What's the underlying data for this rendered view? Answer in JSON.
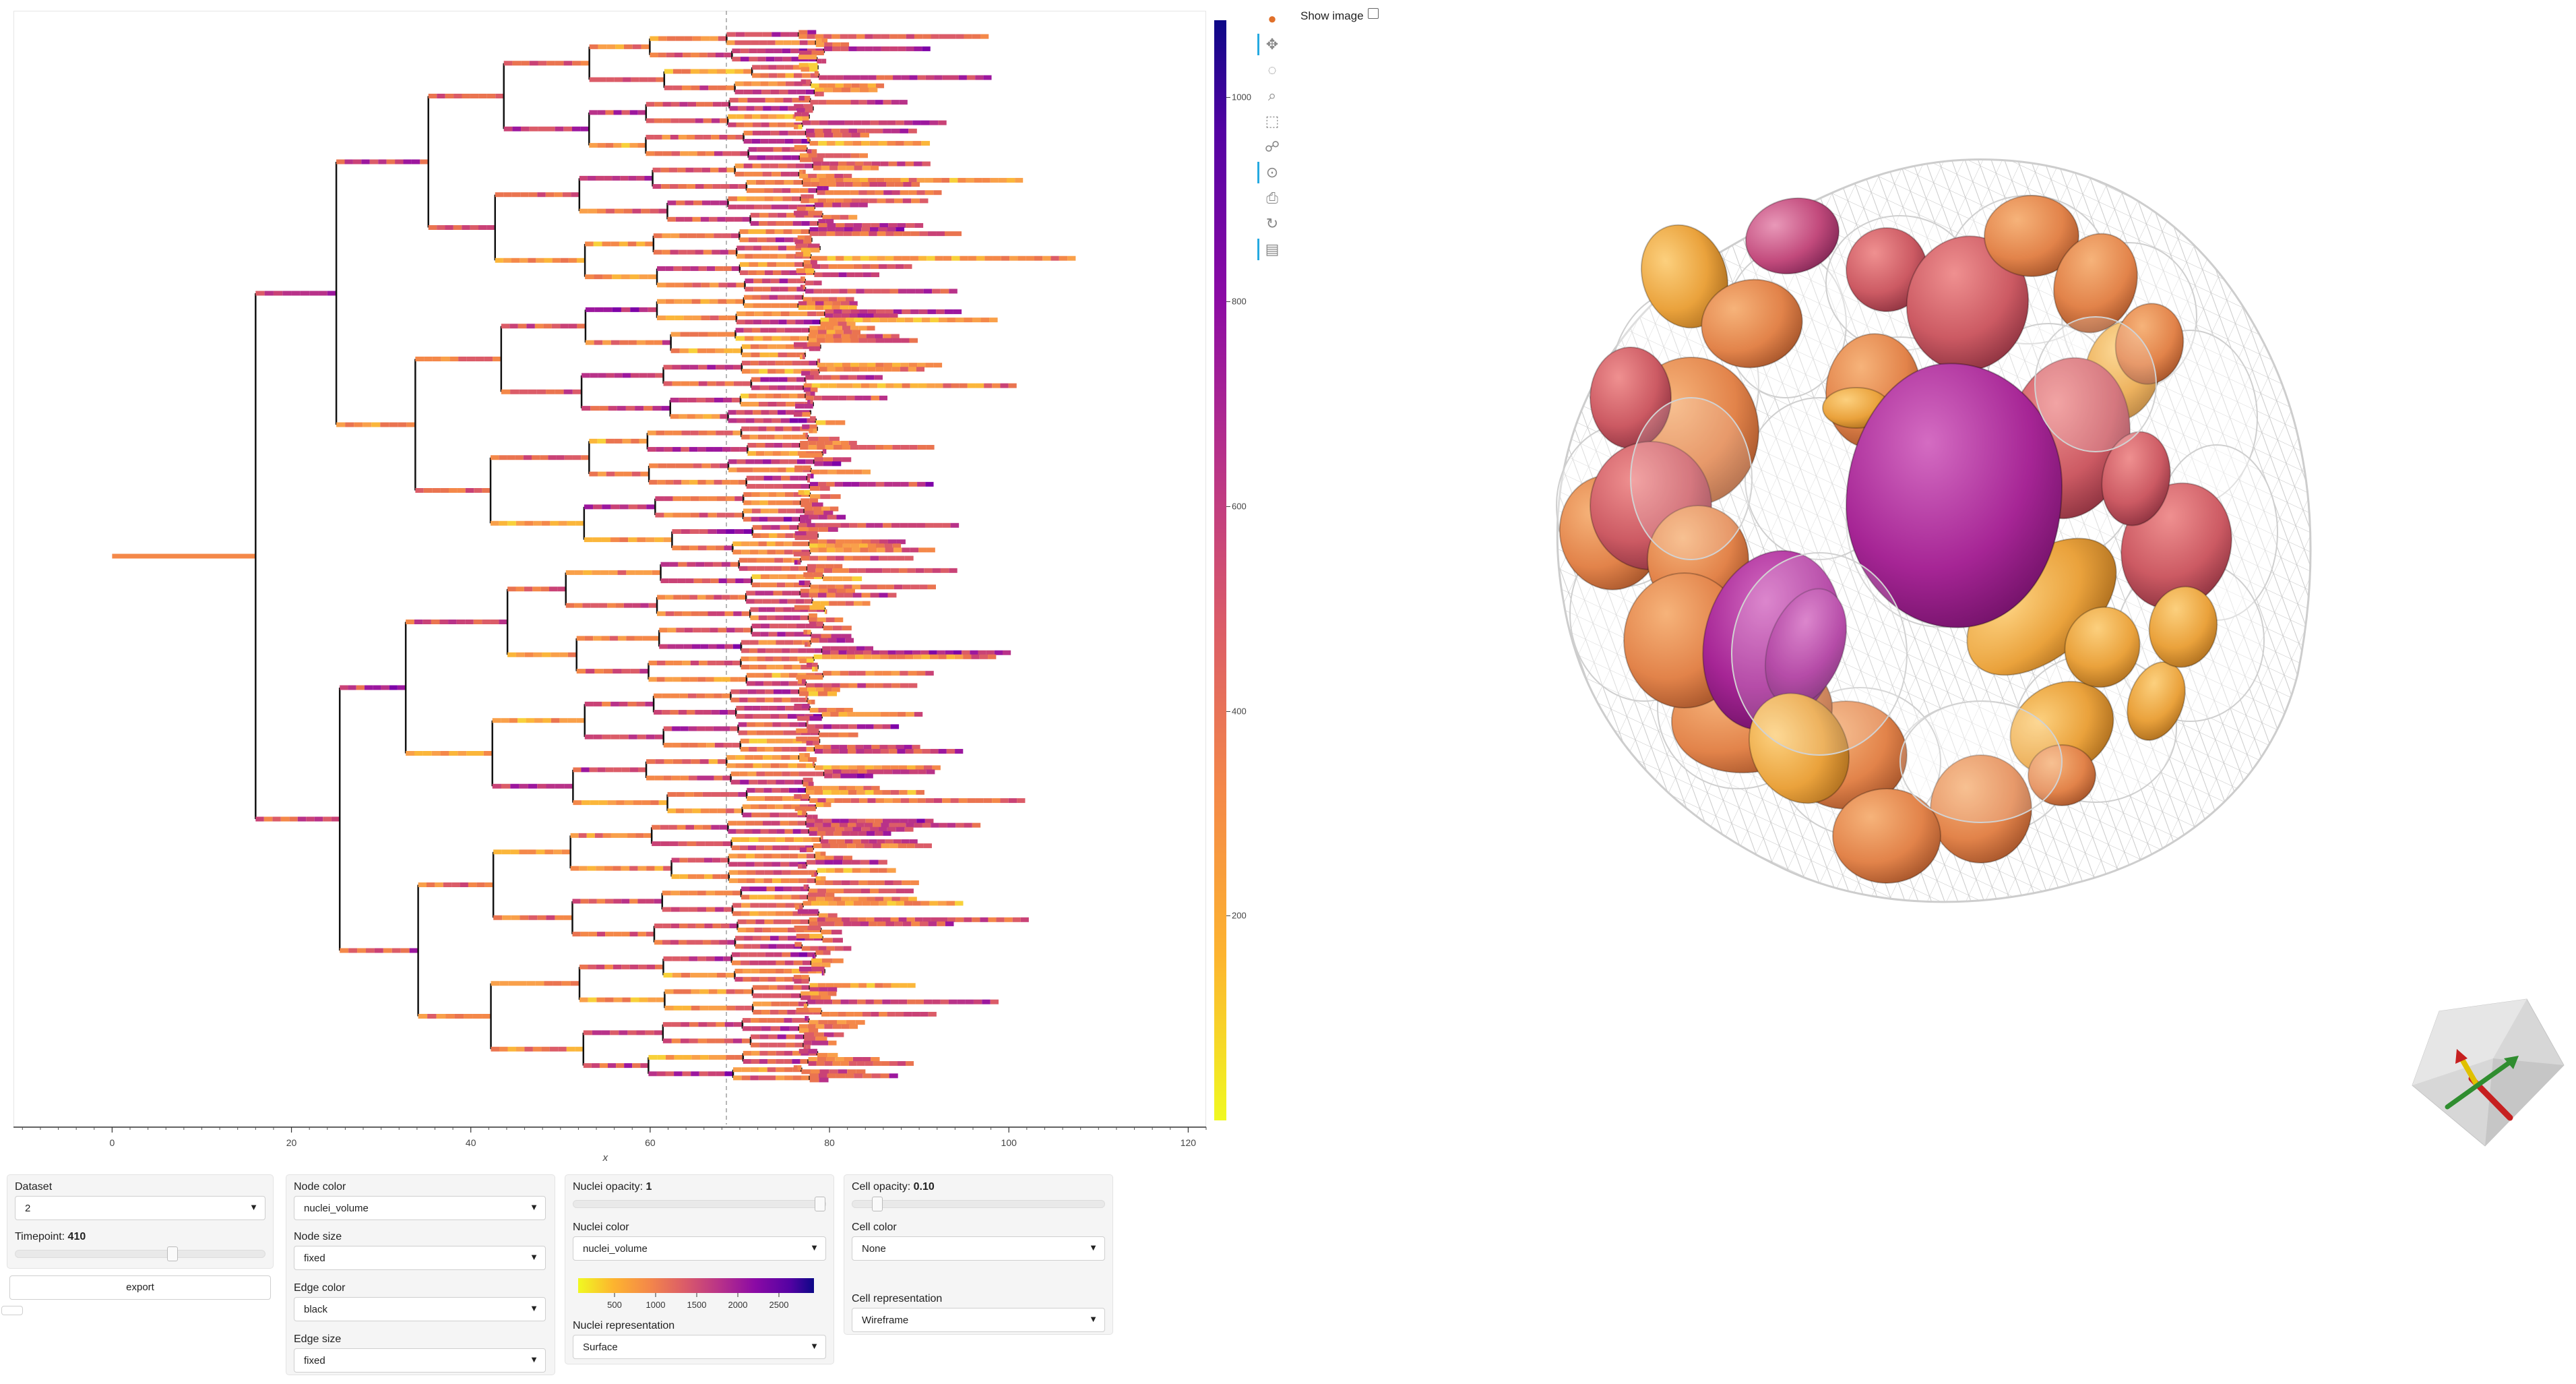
{
  "tree_plot": {
    "xlabel": "x",
    "x_ticks": [
      "0",
      "20",
      "40",
      "60",
      "80",
      "100",
      "120"
    ],
    "colorbar_ticks": [
      "1000",
      "800",
      "600",
      "400",
      "200"
    ],
    "colorbar_ticks_values": [
      1000,
      800,
      600,
      400,
      200
    ],
    "colorbar_range": [
      0,
      1075
    ],
    "marker_x": 68.5,
    "colormap": "plasma-reversed"
  },
  "chart_data": {
    "type": "tree",
    "xlabel": "x",
    "xlim": [
      -11,
      122
    ],
    "xticks": [
      0,
      20,
      40,
      60,
      80,
      100,
      120
    ],
    "branch_points_x": [
      0,
      16,
      26.5,
      34,
      43.5,
      52,
      61,
      70,
      78
    ],
    "leaf_end_x_range": [
      76,
      111
    ],
    "highlight_timepoint_x": 68.5,
    "colorbar": {
      "ticks": [
        200,
        400,
        600,
        800,
        1000
      ],
      "range": [
        0,
        1075
      ]
    }
  },
  "toolbar": {
    "tools": [
      {
        "name": "bokeh-logo-icon",
        "glyph": "●",
        "active": false
      },
      {
        "name": "pan-tool-icon",
        "glyph": "✥",
        "active": true
      },
      {
        "name": "lasso-select-icon",
        "glyph": "◌",
        "active": false
      },
      {
        "name": "zoom-in-icon",
        "glyph": "⌕",
        "active": false
      },
      {
        "name": "box-select-icon",
        "glyph": "⬚",
        "active": false
      },
      {
        "name": "tap-tool-icon",
        "glyph": "☍",
        "active": false
      },
      {
        "name": "wheel-zoom-icon",
        "glyph": "⊙",
        "active": true
      },
      {
        "name": "save-icon",
        "glyph": "⎙",
        "active": false
      },
      {
        "name": "reset-icon",
        "glyph": "↻",
        "active": false
      },
      {
        "name": "hover-tool-icon",
        "glyph": "▤",
        "active": true
      }
    ]
  },
  "show_image": {
    "label": "Show image",
    "checked": false
  },
  "panel1": {
    "dataset_label": "Dataset",
    "dataset_value": "2",
    "timepoint_label": "Timepoint: ",
    "timepoint_value": "410",
    "timepoint_fraction": 0.63,
    "export_label": "export"
  },
  "panel2": {
    "node_color_label": "Node color",
    "node_color_value": "nuclei_volume",
    "node_size_label": "Node size",
    "node_size_value": "fixed",
    "edge_color_label": "Edge color",
    "edge_color_value": "black",
    "edge_size_label": "Edge size",
    "edge_size_value": "fixed"
  },
  "panel3": {
    "nuclei_opacity_label": "Nuclei opacity: ",
    "nuclei_opacity_value": "1",
    "nuclei_opacity_fraction": 1.0,
    "nuclei_color_label": "Nuclei color",
    "nuclei_color_value": "nuclei_volume",
    "colorbar_ticks": [
      "500",
      "1000",
      "1500",
      "2000",
      "2500"
    ],
    "nuclei_representation_label": "Nuclei representation",
    "nuclei_representation_value": "Surface"
  },
  "panel4": {
    "cell_opacity_label": "Cell opacity: ",
    "cell_opacity_value": "0.10",
    "cell_opacity_fraction": 0.1,
    "cell_color_label": "Cell color",
    "cell_color_value": "None",
    "cell_representation_label": "Cell representation",
    "cell_representation_value": "Wireframe"
  }
}
